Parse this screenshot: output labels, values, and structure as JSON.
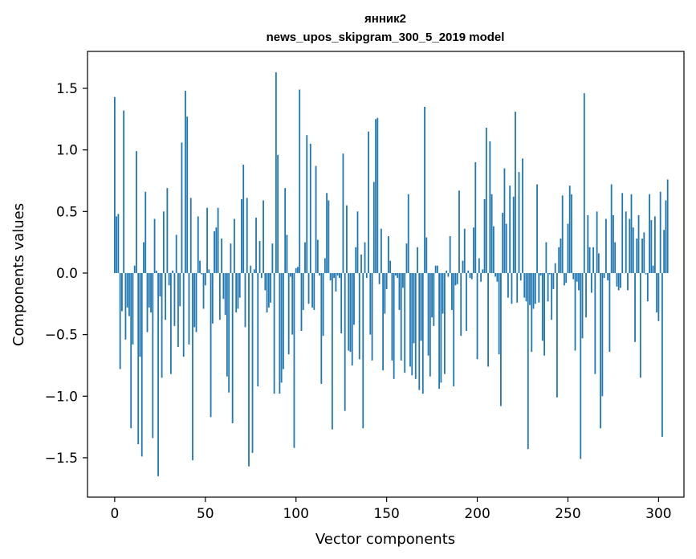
{
  "chart_data": {
    "type": "bar",
    "title_line1": "янник2",
    "title_line2": "news_upos_skipgram_300_5_2019 model",
    "xlabel": "Vector components",
    "ylabel": "Components values",
    "xlim": [
      -15,
      314
    ],
    "ylim": [
      -1.82,
      1.8
    ],
    "xticks": [
      0,
      50,
      100,
      150,
      200,
      250,
      300
    ],
    "yticks": [
      -1.5,
      -1.0,
      -0.5,
      0.0,
      0.5,
      1.0,
      1.5
    ],
    "ytick_labels": [
      "−1.5",
      "−1.0",
      "−0.5",
      "0.0",
      "0.5",
      "1.0",
      "1.5"
    ],
    "bar_color": "#1f77b4",
    "values": [
      1.43,
      0.46,
      0.48,
      -0.78,
      -0.31,
      1.32,
      -0.54,
      -0.28,
      -0.35,
      -1.26,
      -0.58,
      0.06,
      0.99,
      -1.39,
      -0.68,
      -1.49,
      0.25,
      0.66,
      -0.48,
      -0.28,
      -0.32,
      -1.34,
      0.44,
      0.02,
      -1.65,
      -0.19,
      -0.85,
      0.5,
      -0.38,
      0.69,
      -0.1,
      -0.82,
      0.02,
      -0.43,
      0.31,
      -0.6,
      -0.27,
      1.06,
      -0.68,
      1.48,
      1.27,
      -0.58,
      0.61,
      -1.52,
      -0.44,
      -0.48,
      0.46,
      0.1,
      -0.01,
      -0.29,
      -0.1,
      0.53,
      0.03,
      -1.17,
      -0.41,
      0.34,
      0.37,
      0.53,
      -0.38,
      0.28,
      -0.21,
      -0.34,
      -0.84,
      -0.97,
      0.24,
      -1.22,
      0.44,
      -0.32,
      -0.29,
      -0.2,
      0.6,
      0.88,
      -0.44,
      0.61,
      -1.57,
      0.06,
      -1.46,
      0.03,
      0.45,
      -0.92,
      0.26,
      -0.04,
      0.59,
      -0.14,
      -0.32,
      -0.28,
      -0.24,
      0.24,
      -0.98,
      1.63,
      0.96,
      -0.98,
      -0.89,
      -0.78,
      0.69,
      0.31,
      -0.66,
      -0.03,
      -0.5,
      -1.42,
      0.04,
      0.05,
      1.49,
      -0.47,
      -0.3,
      0.25,
      1.12,
      -0.25,
      1.05,
      -0.28,
      -0.3,
      0.87,
      0.27,
      -0.02,
      -0.9,
      -0.51,
      0.12,
      0.65,
      0.59,
      -0.06,
      -1.27,
      -0.04,
      -0.15,
      -0.02,
      -0.04,
      -0.49,
      0.97,
      -1.12,
      0.55,
      -0.63,
      -0.64,
      -0.75,
      -0.42,
      0.21,
      0.5,
      -0.7,
      0.15,
      -1.26,
      0.25,
      -0.04,
      1.15,
      -0.5,
      -0.71,
      0.74,
      1.25,
      1.26,
      -0.09,
      0.36,
      -0.79,
      -0.33,
      -0.13,
      0.3,
      0.1,
      -0.71,
      -0.86,
      -0.02,
      -0.04,
      -0.3,
      -0.71,
      -0.12,
      -0.81,
      0.24,
      0.64,
      -0.76,
      -0.83,
      -0.57,
      -0.86,
      0.21,
      -0.95,
      -0.55,
      -0.98,
      1.35,
      0.29,
      -0.67,
      -0.84,
      -0.36,
      -0.43,
      0.06,
      0.06,
      -0.94,
      -0.89,
      -0.33,
      -0.82,
      0.02,
      -0.03,
      0.3,
      -0.3,
      -0.92,
      -0.1,
      -0.09,
      0.67,
      -0.51,
      0.1,
      0.36,
      -0.47,
      0.02,
      -0.04,
      -0.05,
      0.37,
      0.9,
      -0.7,
      0.12,
      -0.07,
      0.03,
      0.6,
      1.18,
      -0.76,
      1.07,
      0.64,
      0.38,
      -0.03,
      -0.07,
      -0.66,
      -1.08,
      0.49,
      0.85,
      0.4,
      -0.2,
      0.71,
      -0.25,
      0.62,
      1.31,
      -0.24,
      0.82,
      -0.06,
      0.93,
      -0.2,
      -0.23,
      -1.43,
      -0.26,
      -0.64,
      -0.29,
      -0.25,
      0.72,
      -0.24,
      -0.02,
      -0.55,
      -0.67,
      0.25,
      -0.23,
      -0.01,
      -0.38,
      -0.13,
      0.08,
      -1.01,
      0.21,
      0.28,
      0.63,
      -0.1,
      -0.08,
      0.4,
      0.71,
      0.64,
      -0.05,
      -0.63,
      -0.07,
      -0.14,
      -1.51,
      -0.53,
      1.46,
      -0.36,
      0.47,
      0.21,
      -0.16,
      0.21,
      -0.82,
      0.5,
      0.16,
      -1.26,
      -1.0,
      -0.04,
      0.44,
      -0.06,
      -0.64,
      0.72,
      0.47,
      0.25,
      -0.11,
      -0.14,
      -0.12,
      0.65,
      0.0,
      0.5,
      -0.14,
      0.44,
      0.64,
      0.37,
      -0.56,
      0.28,
      0.47,
      -0.85,
      0.28,
      0.33,
      -0.01,
      -0.23,
      0.64,
      0.43,
      0.06,
      0.46,
      -0.32,
      -0.39,
      0.66,
      -1.33,
      0.35,
      0.59,
      0.76
    ]
  }
}
